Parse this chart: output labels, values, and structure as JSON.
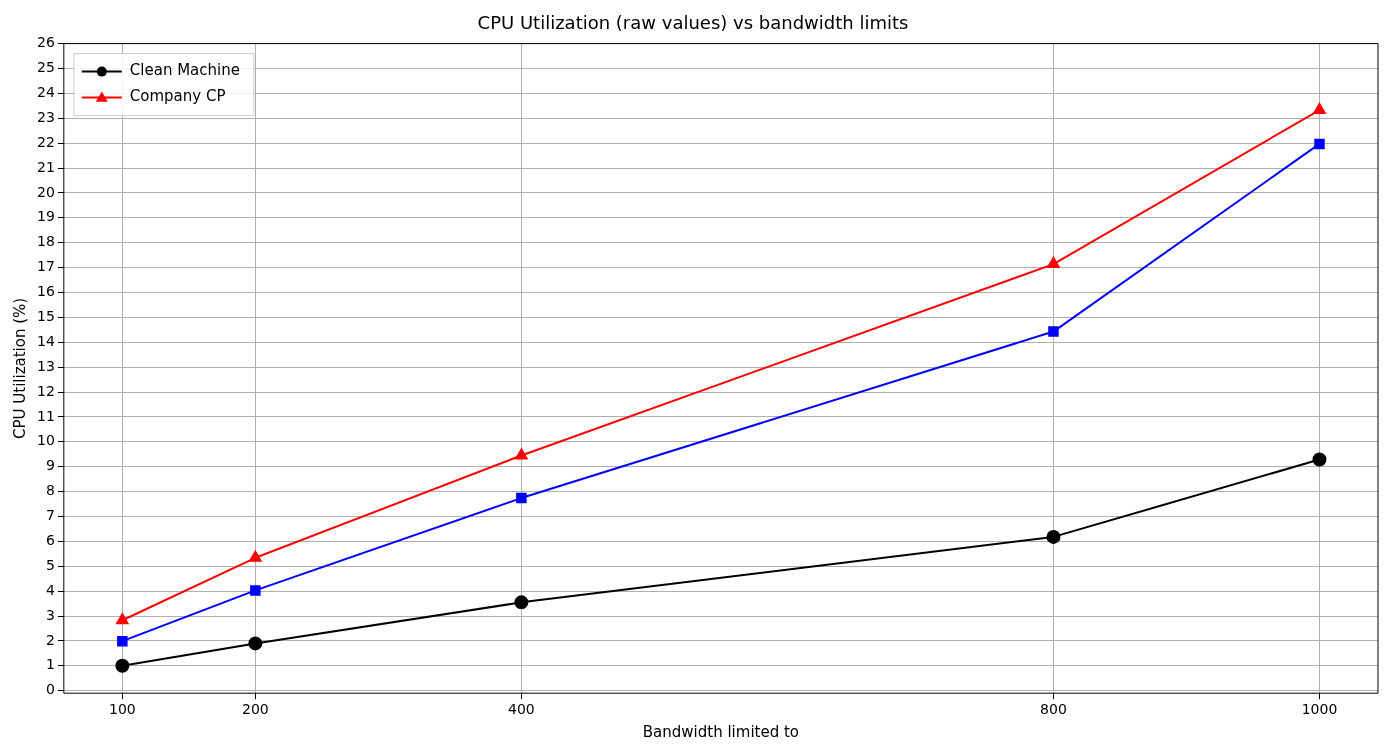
{
  "chart_data": {
    "type": "line",
    "title": "CPU Utilization (raw values) vs bandwidth limits",
    "xlabel": "Bandwidth limited to",
    "ylabel": "CPU Utilization (%)",
    "x": [
      100,
      200,
      400,
      800,
      1000
    ],
    "series": [
      {
        "name": "Clean Machine",
        "color": "#000000",
        "marker": "circle",
        "values": [
          1.0,
          1.9,
          3.55,
          6.18,
          9.29
        ]
      },
      {
        "color": "#0000ff",
        "marker": "square",
        "values": [
          1.99,
          4.03,
          7.74,
          14.43,
          21.97
        ]
      },
      {
        "name": "Company CP",
        "color": "#ff0000",
        "marker": "triangle",
        "values": [
          2.83,
          5.34,
          9.45,
          17.14,
          23.33
        ]
      }
    ],
    "xlim": [
      56,
      1044
    ],
    "xticks": [
      100,
      200,
      400,
      800,
      1000
    ],
    "ylim": [
      -0.1,
      26
    ],
    "yticks": [
      0,
      1,
      2,
      3,
      4,
      5,
      6,
      7,
      8,
      9,
      10,
      11,
      12,
      13,
      14,
      15,
      16,
      17,
      18,
      19,
      20,
      21,
      22,
      23,
      24,
      25,
      26
    ],
    "grid": true,
    "legend": "top left",
    "line_style": "solid"
  }
}
